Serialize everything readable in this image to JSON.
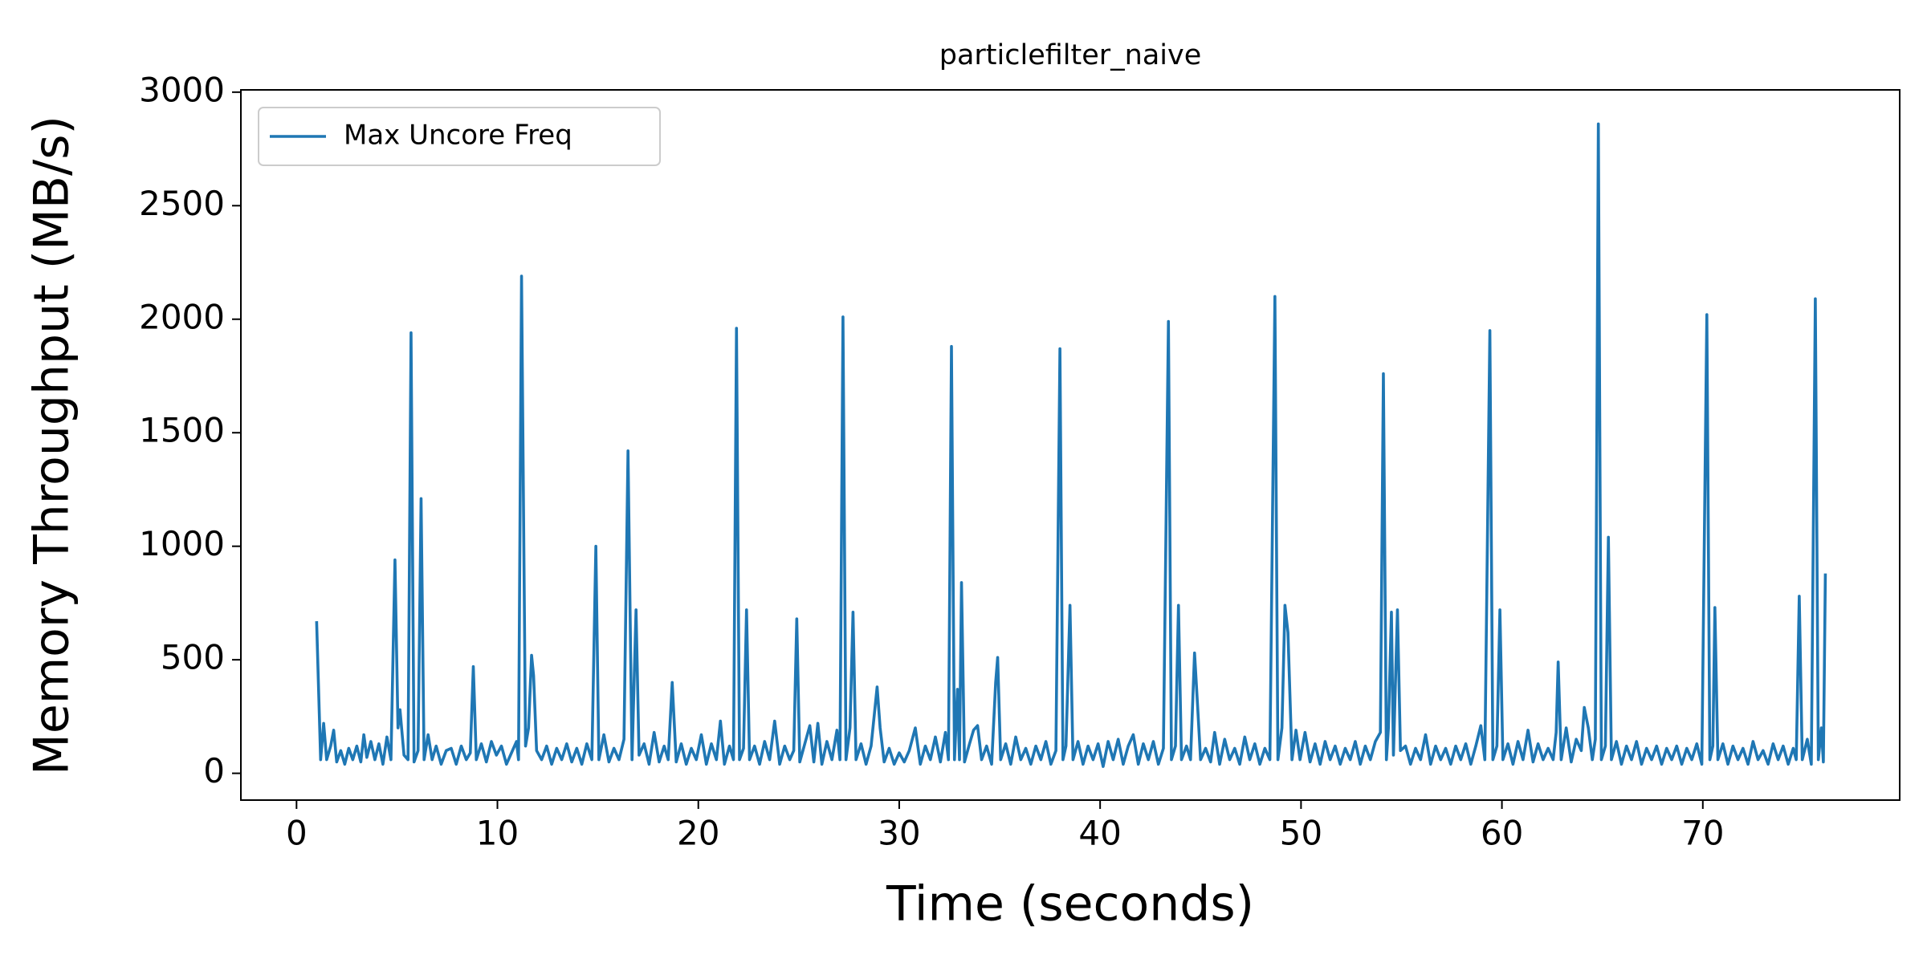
{
  "chart_data": {
    "type": "line",
    "title": "particlefilter_naive",
    "x_label": "Time (seconds)",
    "y_label": "Memory Throughput (MB/s)",
    "xlim": [
      -2.77,
      79.8
    ],
    "ylim": [
      -118,
      3010
    ],
    "xticks": [
      0,
      10,
      20,
      30,
      40,
      50,
      60,
      70
    ],
    "yticks": [
      0,
      500,
      1000,
      1500,
      2000,
      2500,
      3000
    ],
    "legend": "upper left",
    "x": [
      1.0,
      1.2,
      1.35,
      1.5,
      1.7,
      1.85,
      2.0,
      2.2,
      2.4,
      2.6,
      2.8,
      3.0,
      3.2,
      3.35,
      3.5,
      3.7,
      3.9,
      4.1,
      4.3,
      4.5,
      4.7,
      4.9,
      5.05,
      5.15,
      5.35,
      5.55,
      5.7,
      5.85,
      6.05,
      6.2,
      6.35,
      6.55,
      6.75,
      6.95,
      7.2,
      7.45,
      7.7,
      7.95,
      8.2,
      8.45,
      8.65,
      8.8,
      8.95,
      9.2,
      9.45,
      9.7,
      9.95,
      10.2,
      10.45,
      10.7,
      10.95,
      11.05,
      11.2,
      11.4,
      11.55,
      11.7,
      11.8,
      11.95,
      12.2,
      12.45,
      12.7,
      12.95,
      13.2,
      13.45,
      13.7,
      13.95,
      14.2,
      14.45,
      14.7,
      14.9,
      15.05,
      15.3,
      15.55,
      15.8,
      16.05,
      16.3,
      16.5,
      16.7,
      16.9,
      17.05,
      17.3,
      17.55,
      17.8,
      18.05,
      18.3,
      18.5,
      18.7,
      18.9,
      19.15,
      19.4,
      19.65,
      19.9,
      20.15,
      20.4,
      20.65,
      20.9,
      21.1,
      21.3,
      21.55,
      21.75,
      21.9,
      22.05,
      22.25,
      22.4,
      22.55,
      22.8,
      23.05,
      23.3,
      23.55,
      23.8,
      24.05,
      24.3,
      24.55,
      24.75,
      24.9,
      25.05,
      25.3,
      25.55,
      25.75,
      25.95,
      26.15,
      26.4,
      26.65,
      26.9,
      27.05,
      27.2,
      27.35,
      27.55,
      27.7,
      27.85,
      28.1,
      28.35,
      28.6,
      28.9,
      29.05,
      29.25,
      29.5,
      29.75,
      30.0,
      30.25,
      30.5,
      30.8,
      31.05,
      31.3,
      31.55,
      31.8,
      32.05,
      32.3,
      32.45,
      32.6,
      32.75,
      32.9,
      33.0,
      33.1,
      33.25,
      33.5,
      33.7,
      33.9,
      34.1,
      34.35,
      34.6,
      34.8,
      34.9,
      35.05,
      35.3,
      35.55,
      35.8,
      36.05,
      36.3,
      36.55,
      36.8,
      37.05,
      37.3,
      37.55,
      37.8,
      38.0,
      38.15,
      38.3,
      38.5,
      38.65,
      38.9,
      39.15,
      39.4,
      39.65,
      39.9,
      40.15,
      40.4,
      40.65,
      40.9,
      41.15,
      41.4,
      41.65,
      41.9,
      42.15,
      42.4,
      42.65,
      42.9,
      43.15,
      43.4,
      43.55,
      43.75,
      43.9,
      44.05,
      44.3,
      44.5,
      44.7,
      44.85,
      45.0,
      45.25,
      45.5,
      45.7,
      45.95,
      46.2,
      46.45,
      46.7,
      46.95,
      47.2,
      47.45,
      47.7,
      47.95,
      48.2,
      48.45,
      48.7,
      48.85,
      49.05,
      49.2,
      49.35,
      49.55,
      49.75,
      49.95,
      50.2,
      50.45,
      50.7,
      50.95,
      51.2,
      51.45,
      51.7,
      51.95,
      52.2,
      52.45,
      52.7,
      52.95,
      53.2,
      53.45,
      53.7,
      53.95,
      54.1,
      54.25,
      54.35,
      54.5,
      54.6,
      54.8,
      54.95,
      55.2,
      55.45,
      55.7,
      55.95,
      56.2,
      56.45,
      56.7,
      56.95,
      57.2,
      57.45,
      57.7,
      57.95,
      58.2,
      58.45,
      58.7,
      58.95,
      59.15,
      59.4,
      59.55,
      59.75,
      59.9,
      60.05,
      60.3,
      60.55,
      60.8,
      61.05,
      61.3,
      61.55,
      61.8,
      62.05,
      62.3,
      62.55,
      62.7,
      62.8,
      62.95,
      63.2,
      63.45,
      63.7,
      63.95,
      64.1,
      64.3,
      64.5,
      64.65,
      64.8,
      64.95,
      65.15,
      65.3,
      65.45,
      65.7,
      65.95,
      66.2,
      66.45,
      66.7,
      66.95,
      67.2,
      67.45,
      67.7,
      67.95,
      68.2,
      68.45,
      68.7,
      68.95,
      69.2,
      69.45,
      69.7,
      69.95,
      70.2,
      70.35,
      70.5,
      70.6,
      70.75,
      71.0,
      71.25,
      71.5,
      71.75,
      72.0,
      72.25,
      72.5,
      72.75,
      73.0,
      73.25,
      73.5,
      73.75,
      74.0,
      74.25,
      74.5,
      74.65,
      74.8,
      74.95,
      75.2,
      75.4,
      75.6,
      75.75,
      75.9,
      76.0,
      76.1
    ],
    "series": [
      {
        "name": "Max Uncore Freq",
        "color": "#1f77b4",
        "values": [
          670,
          60,
          220,
          60,
          120,
          190,
          50,
          100,
          40,
          110,
          60,
          120,
          50,
          170,
          70,
          140,
          60,
          130,
          40,
          160,
          60,
          940,
          200,
          280,
          80,
          60,
          1940,
          50,
          100,
          1210,
          60,
          170,
          60,
          120,
          40,
          100,
          110,
          40,
          120,
          60,
          90,
          470,
          60,
          130,
          50,
          140,
          80,
          120,
          40,
          90,
          140,
          60,
          2190,
          120,
          200,
          520,
          430,
          100,
          60,
          120,
          40,
          110,
          60,
          130,
          50,
          110,
          40,
          130,
          60,
          1000,
          60,
          170,
          50,
          110,
          60,
          150,
          1420,
          60,
          720,
          80,
          130,
          40,
          180,
          50,
          120,
          60,
          400,
          50,
          130,
          40,
          110,
          60,
          170,
          40,
          130,
          60,
          230,
          40,
          120,
          60,
          1960,
          60,
          110,
          720,
          60,
          120,
          40,
          140,
          60,
          230,
          40,
          120,
          60,
          100,
          680,
          50,
          130,
          210,
          50,
          220,
          40,
          140,
          60,
          190,
          60,
          2010,
          60,
          200,
          710,
          60,
          130,
          40,
          120,
          380,
          200,
          50,
          110,
          40,
          90,
          50,
          100,
          200,
          40,
          120,
          60,
          160,
          50,
          180,
          60,
          1880,
          60,
          370,
          60,
          840,
          50,
          130,
          190,
          210,
          60,
          120,
          40,
          400,
          510,
          60,
          130,
          40,
          160,
          60,
          110,
          40,
          120,
          60,
          140,
          40,
          100,
          1870,
          60,
          120,
          740,
          60,
          140,
          40,
          120,
          60,
          130,
          30,
          140,
          60,
          150,
          40,
          120,
          170,
          40,
          130,
          60,
          140,
          40,
          110,
          1990,
          60,
          120,
          740,
          60,
          120,
          60,
          530,
          300,
          60,
          110,
          50,
          180,
          40,
          150,
          60,
          110,
          40,
          160,
          60,
          130,
          40,
          110,
          60,
          2100,
          60,
          200,
          740,
          620,
          60,
          190,
          60,
          180,
          50,
          130,
          40,
          140,
          60,
          120,
          40,
          110,
          60,
          140,
          40,
          120,
          60,
          140,
          180,
          1760,
          60,
          200,
          710,
          80,
          720,
          100,
          120,
          40,
          110,
          60,
          170,
          40,
          120,
          60,
          110,
          40,
          120,
          60,
          130,
          40,
          120,
          210,
          60,
          1950,
          60,
          120,
          720,
          60,
          130,
          40,
          140,
          60,
          190,
          50,
          130,
          60,
          110,
          60,
          180,
          490,
          60,
          200,
          50,
          150,
          100,
          290,
          200,
          60,
          150,
          2860,
          60,
          120,
          1040,
          60,
          140,
          40,
          120,
          60,
          140,
          40,
          110,
          60,
          120,
          40,
          110,
          60,
          120,
          40,
          110,
          60,
          130,
          40,
          2020,
          60,
          120,
          730,
          60,
          130,
          40,
          120,
          60,
          110,
          40,
          140,
          60,
          100,
          40,
          130,
          60,
          120,
          40,
          110,
          60,
          780,
          60,
          150,
          40,
          2090,
          60,
          200,
          50,
          880
        ]
      }
    ]
  }
}
